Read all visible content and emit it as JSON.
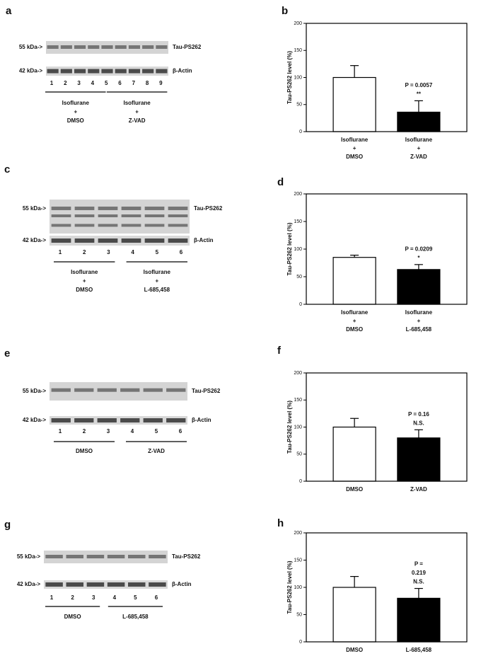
{
  "blots": [
    {
      "label": "a",
      "marker_top": "55 kDa->",
      "marker_bottom": "42 kDa->",
      "target": "Tau-PS262",
      "control": "β-Actin",
      "lanes": [
        "1",
        "2",
        "3",
        "4",
        "5",
        "6",
        "7",
        "8",
        "9"
      ],
      "groups": [
        [
          "Isoflurane",
          "+",
          "DMSO"
        ],
        [
          "Isoflurane",
          "+",
          "Z-VAD"
        ]
      ]
    },
    {
      "label": "c",
      "marker_top": "55 kDa->",
      "marker_bottom": "42 kDa->",
      "target": "Tau-PS262",
      "control": "β-Actin",
      "lanes": [
        "1",
        "2",
        "3",
        "4",
        "5",
        "6"
      ],
      "groups": [
        [
          "Isoflurane",
          "+",
          "DMSO"
        ],
        [
          "Isoflurane",
          "+",
          "L-685,458"
        ]
      ]
    },
    {
      "label": "e",
      "marker_top": "55 kDa->",
      "marker_bottom": "42 kDa->",
      "target": "Tau-PS262",
      "control": "β-Actin",
      "lanes": [
        "1",
        "2",
        "3",
        "4",
        "5",
        "6"
      ],
      "groups": [
        [
          "DMSO"
        ],
        [
          "Z-VAD"
        ]
      ]
    },
    {
      "label": "g",
      "marker_top": "55 kDa->",
      "marker_bottom": "42 kDa->",
      "target": "Tau-PS262",
      "control": "β-Actin",
      "lanes": [
        "1",
        "2",
        "3",
        "4",
        "5",
        "6"
      ],
      "groups": [
        [
          "DMSO"
        ],
        [
          "L-685,458"
        ]
      ]
    }
  ],
  "chart_data": [
    {
      "type": "bar",
      "label": "b",
      "y_label": "Tau-PS262 level (%)",
      "categories": [
        [
          "Isoflurane",
          "+",
          "DMSO"
        ],
        [
          "Isoflurane",
          "+",
          "Z-VAD"
        ]
      ],
      "values": [
        100,
        36
      ],
      "errors": [
        22,
        21
      ],
      "colors": [
        "#ffffff",
        "#000000"
      ],
      "annotation": [
        "P = 0.0057",
        "**"
      ],
      "ylim": [
        0,
        200
      ],
      "yticks": [
        0,
        50,
        100,
        150,
        200
      ]
    },
    {
      "type": "bar",
      "label": "d",
      "y_label": "Tau-PS262 level (%)",
      "categories": [
        [
          "Isoflurane",
          "+",
          "DMSO"
        ],
        [
          "Isoflurane",
          "+",
          "L-685,458"
        ]
      ],
      "values": [
        85,
        63
      ],
      "errors": [
        4,
        9
      ],
      "colors": [
        "#ffffff",
        "#000000"
      ],
      "annotation": [
        "P = 0.0209",
        "*"
      ],
      "ylim": [
        0,
        200
      ],
      "yticks": [
        0,
        50,
        100,
        150,
        200
      ]
    },
    {
      "type": "bar",
      "label": "f",
      "y_label": "Tau-PS262 level (%)",
      "categories": [
        [
          "DMSO"
        ],
        [
          "Z-VAD"
        ]
      ],
      "values": [
        100,
        80
      ],
      "errors": [
        16,
        15
      ],
      "colors": [
        "#ffffff",
        "#000000"
      ],
      "annotation": [
        "P = 0.16",
        "N.S."
      ],
      "ylim": [
        0,
        200
      ],
      "yticks": [
        0,
        50,
        100,
        150,
        200
      ]
    },
    {
      "type": "bar",
      "label": "h",
      "y_label": "Tau-PS262 level (%)",
      "categories": [
        [
          "DMSO"
        ],
        [
          "L-685,458"
        ]
      ],
      "values": [
        100,
        80
      ],
      "errors": [
        20,
        18
      ],
      "colors": [
        "#ffffff",
        "#000000"
      ],
      "annotation": [
        "P =",
        "0.219",
        "N.S."
      ],
      "ylim": [
        0,
        200
      ],
      "yticks": [
        0,
        50,
        100,
        150,
        200
      ]
    }
  ]
}
